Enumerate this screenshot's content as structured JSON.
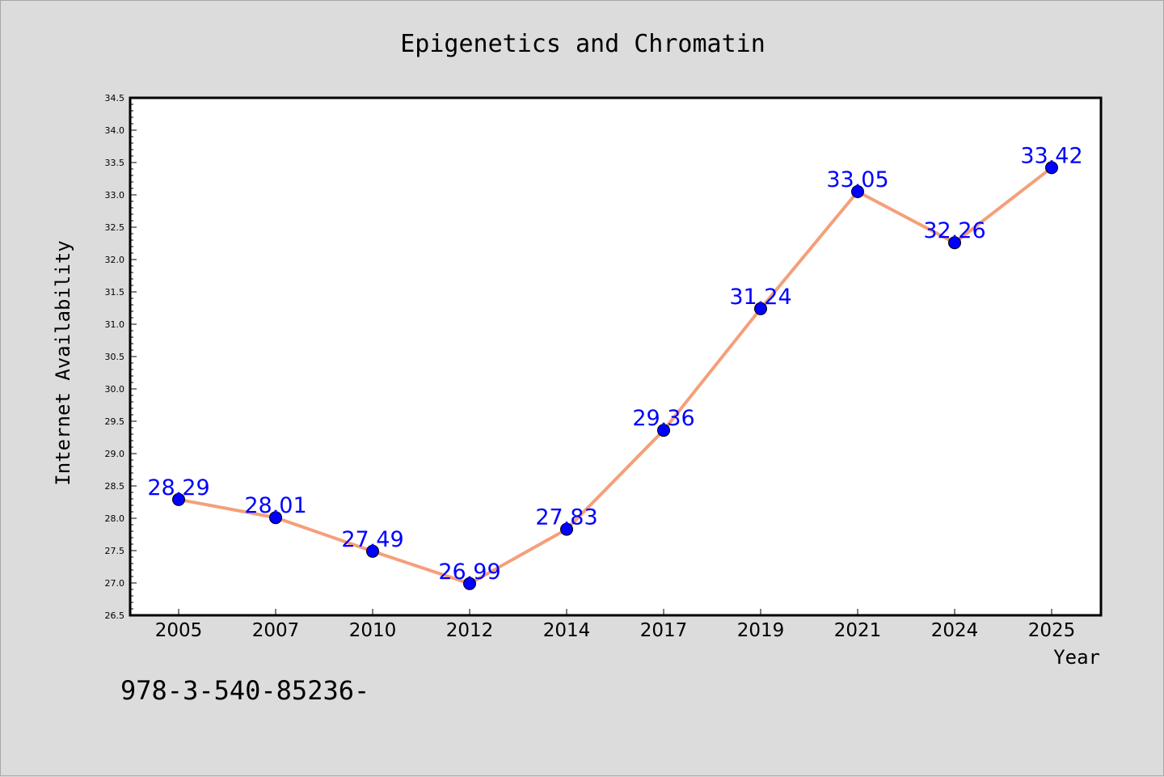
{
  "chart_data": {
    "type": "line",
    "title": "Epigenetics and Chromatin",
    "xlabel": "Year",
    "ylabel": "Internet Availability",
    "categories": [
      "2005",
      "2007",
      "2010",
      "2012",
      "2014",
      "2017",
      "2019",
      "2021",
      "2024",
      "2025"
    ],
    "values": [
      28.29,
      28.01,
      27.49,
      26.99,
      27.83,
      29.36,
      31.24,
      33.05,
      32.26,
      33.42
    ],
    "data_labels": [
      "28.29",
      "28.01",
      "27.49",
      "26.99",
      "27.83",
      "29.36",
      "31.24",
      "33.05",
      "32.26",
      "33.42"
    ],
    "ylim": [
      26.5,
      34.5
    ],
    "yticks": [
      "26.5",
      "27.0",
      "27.5",
      "28.0",
      "28.5",
      "29.0",
      "29.5",
      "30.0",
      "30.5",
      "31.0",
      "31.5",
      "32.0",
      "32.5",
      "33.0",
      "33.5",
      "34.0",
      "34.5"
    ],
    "grid": false,
    "legend": "none",
    "line_color": "#f4a07a",
    "marker_color": "#0000ff",
    "label_color": "#0000ff"
  },
  "footnote": "978-3-540-85236-"
}
